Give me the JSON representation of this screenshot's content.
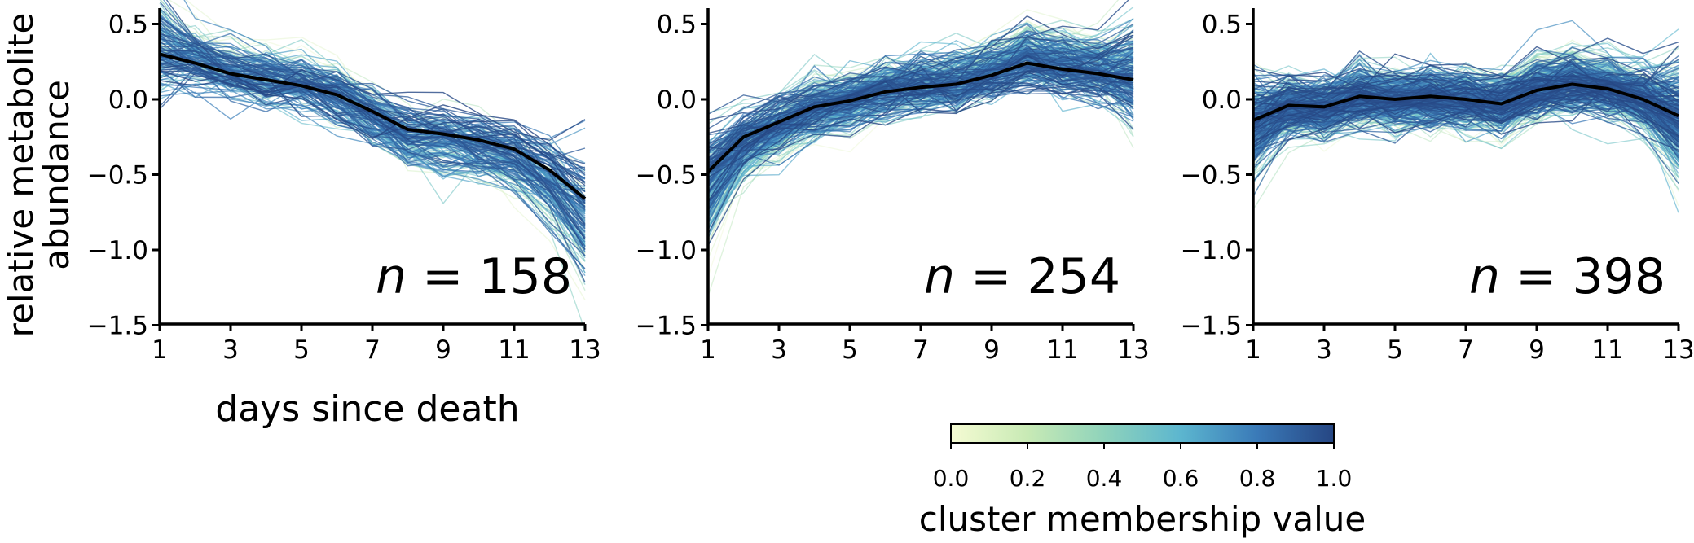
{
  "chart_data": [
    {
      "type": "line",
      "ylabel": "relative metabolite\nabundance",
      "xlabel": "days since death",
      "annotation": "n = 158",
      "annotation_parts": {
        "var": "n",
        "eq": " = ",
        "value": "158"
      },
      "x": [
        1,
        2,
        3,
        4,
        5,
        6,
        7,
        8,
        9,
        10,
        11,
        12,
        13
      ],
      "xticks": [
        "1",
        "3",
        "5",
        "7",
        "9",
        "11",
        "13"
      ],
      "yticks": [
        "0.5",
        "0.0",
        "−0.5",
        "−1.0",
        "−1.5"
      ],
      "xlim": [
        1,
        13
      ],
      "ylim": [
        -1.5,
        0.6
      ],
      "mean_series": [
        0.3,
        0.24,
        0.17,
        0.13,
        0.09,
        0.03,
        -0.08,
        -0.2,
        -0.23,
        -0.27,
        -0.33,
        -0.47,
        -0.66
      ],
      "member_count": 158
    },
    {
      "type": "line",
      "xlabel": "",
      "ylabel": "",
      "annotation": "n = 254",
      "annotation_parts": {
        "var": "n",
        "eq": " = ",
        "value": "254"
      },
      "x": [
        1,
        2,
        3,
        4,
        5,
        6,
        7,
        8,
        9,
        10,
        11,
        12,
        13
      ],
      "xticks": [
        "1",
        "3",
        "5",
        "7",
        "9",
        "11",
        "13"
      ],
      "yticks": [
        "0.5",
        "0.0",
        "−0.5",
        "−1.0",
        "−1.5"
      ],
      "xlim": [
        1,
        13
      ],
      "ylim": [
        -1.5,
        0.6
      ],
      "mean_series": [
        -0.48,
        -0.25,
        -0.15,
        -0.05,
        -0.01,
        0.05,
        0.08,
        0.1,
        0.16,
        0.24,
        0.2,
        0.17,
        0.13
      ],
      "member_count": 254
    },
    {
      "type": "line",
      "xlabel": "",
      "ylabel": "",
      "annotation": "n = 398",
      "annotation_parts": {
        "var": "n",
        "eq": " = ",
        "value": "398"
      },
      "x": [
        1,
        2,
        3,
        4,
        5,
        6,
        7,
        8,
        9,
        10,
        11,
        12,
        13
      ],
      "xticks": [
        "1",
        "3",
        "5",
        "7",
        "9",
        "11",
        "13"
      ],
      "yticks": [
        "0.5",
        "0.0",
        "−0.5",
        "−1.0",
        "−1.5"
      ],
      "xlim": [
        1,
        13
      ],
      "ylim": [
        -1.5,
        0.6
      ],
      "mean_series": [
        -0.14,
        -0.04,
        -0.05,
        0.02,
        0.0,
        0.02,
        0.0,
        -0.03,
        0.06,
        0.1,
        0.07,
        0.0,
        -0.11
      ],
      "member_count": 398
    }
  ],
  "colorbar": {
    "label": "cluster membership value",
    "ticks": [
      "0.0",
      "0.2",
      "0.4",
      "0.6",
      "0.8",
      "1.0"
    ],
    "range": [
      0,
      1
    ],
    "colors": [
      "#f5fbd3",
      "#c8eab5",
      "#8fd3bb",
      "#5cb6cf",
      "#3a7ab8",
      "#264683"
    ]
  },
  "mean_line_color": "#000000"
}
